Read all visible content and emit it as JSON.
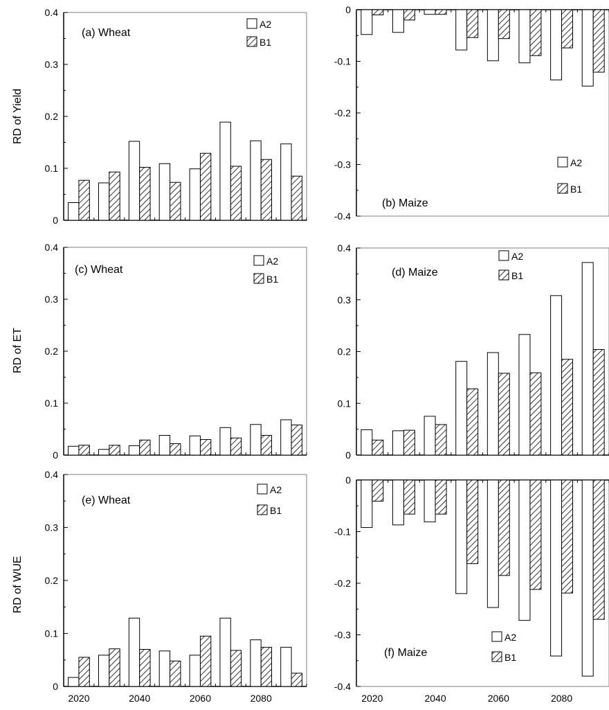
{
  "colors": {
    "axis": "#000000",
    "frame": "#808080",
    "bar_a2_fill": "#ffffff",
    "bar_b1_fill": "hatched",
    "bar_edge": "#000000"
  },
  "row_labels": [
    "RD of Yield",
    "RD of ET",
    "RD of WUE"
  ],
  "x_tick_labels": [
    "2020",
    "2040",
    "2060",
    "2080"
  ],
  "chart_data": [
    {
      "type": "bar",
      "title": "(a) Wheat",
      "xlabel": "",
      "ylabel": "RD of Yield",
      "legend_position": "top-right",
      "x": [
        2020,
        2030,
        2040,
        2050,
        2060,
        2070,
        2080,
        2090
      ],
      "ylim": [
        0,
        0.4
      ],
      "yticks": [
        "0",
        "0.1",
        "0.2",
        "0.3",
        "0.4"
      ],
      "series": [
        {
          "name": "A2",
          "values": [
            0.034,
            0.072,
            0.152,
            0.109,
            0.099,
            0.189,
            0.153,
            0.147
          ]
        },
        {
          "name": "B1",
          "values": [
            0.077,
            0.093,
            0.102,
            0.073,
            0.129,
            0.104,
            0.117,
            0.085
          ]
        }
      ]
    },
    {
      "type": "bar",
      "title": "(b) Maize",
      "xlabel": "",
      "ylabel": "",
      "legend_position": "bottom-right",
      "x": [
        2020,
        2030,
        2040,
        2050,
        2060,
        2070,
        2080,
        2090
      ],
      "ylim": [
        -0.4,
        0
      ],
      "yticks": [
        "-0.4",
        "-0.3",
        "-0.2",
        "-0.1",
        "0"
      ],
      "series": [
        {
          "name": "A2",
          "values": [
            -0.048,
            -0.044,
            -0.009,
            -0.078,
            -0.099,
            -0.103,
            -0.136,
            -0.148
          ]
        },
        {
          "name": "B1",
          "values": [
            -0.01,
            -0.02,
            -0.009,
            -0.054,
            -0.056,
            -0.089,
            -0.074,
            -0.121
          ]
        }
      ]
    },
    {
      "type": "bar",
      "title": "(c) Wheat",
      "xlabel": "",
      "ylabel": "RD of ET",
      "legend_position": "top-right",
      "x": [
        2020,
        2030,
        2040,
        2050,
        2060,
        2070,
        2080,
        2090
      ],
      "ylim": [
        0,
        0.4
      ],
      "yticks": [
        "0",
        "0.1",
        "0.2",
        "0.3",
        "0.4"
      ],
      "series": [
        {
          "name": "A2",
          "values": [
            0.017,
            0.011,
            0.018,
            0.038,
            0.037,
            0.053,
            0.059,
            0.068
          ]
        },
        {
          "name": "B1",
          "values": [
            0.019,
            0.019,
            0.029,
            0.022,
            0.03,
            0.033,
            0.038,
            0.058
          ]
        }
      ]
    },
    {
      "type": "bar",
      "title": "(d) Maize",
      "xlabel": "",
      "ylabel": "",
      "legend_position": "top-center",
      "x": [
        2020,
        2030,
        2040,
        2050,
        2060,
        2070,
        2080,
        2090
      ],
      "ylim": [
        0,
        0.4
      ],
      "yticks": [
        "0",
        "0.1",
        "0.2",
        "0.3",
        "0.4"
      ],
      "series": [
        {
          "name": "A2",
          "values": [
            0.049,
            0.047,
            0.075,
            0.181,
            0.198,
            0.233,
            0.308,
            0.372
          ]
        },
        {
          "name": "B1",
          "values": [
            0.029,
            0.048,
            0.059,
            0.128,
            0.158,
            0.159,
            0.185,
            0.204
          ]
        }
      ]
    },
    {
      "type": "bar",
      "title": "(e)  Wheat",
      "xlabel": "",
      "ylabel": "RD of WUE",
      "legend_position": "top-right",
      "x": [
        2020,
        2030,
        2040,
        2050,
        2060,
        2070,
        2080,
        2090
      ],
      "ylim": [
        0,
        0.4
      ],
      "yticks": [
        "0",
        "0.1",
        "0.2",
        "0.3",
        "0.4"
      ],
      "xticks": [
        "2020",
        "2040",
        "2060",
        "2080"
      ],
      "series": [
        {
          "name": "A2",
          "values": [
            0.017,
            0.059,
            0.129,
            0.067,
            0.059,
            0.129,
            0.088,
            0.074
          ]
        },
        {
          "name": "B1",
          "values": [
            0.055,
            0.071,
            0.07,
            0.048,
            0.095,
            0.068,
            0.074,
            0.025
          ]
        }
      ]
    },
    {
      "type": "bar",
      "title": "(f) Maize",
      "xlabel": "",
      "ylabel": "",
      "legend_position": "bottom-center",
      "x": [
        2020,
        2030,
        2040,
        2050,
        2060,
        2070,
        2080,
        2090
      ],
      "ylim": [
        -0.4,
        0
      ],
      "yticks": [
        "-0.4",
        "-0.3",
        "-0.2",
        "-0.1",
        "0"
      ],
      "xticks": [
        "2020",
        "2040",
        "2060",
        "2080"
      ],
      "series": [
        {
          "name": "A2",
          "values": [
            -0.092,
            -0.087,
            -0.081,
            -0.22,
            -0.247,
            -0.272,
            -0.341,
            -0.38
          ]
        },
        {
          "name": "B1",
          "values": [
            -0.041,
            -0.066,
            -0.066,
            -0.162,
            -0.185,
            -0.212,
            -0.219,
            -0.27
          ]
        }
      ]
    }
  ]
}
